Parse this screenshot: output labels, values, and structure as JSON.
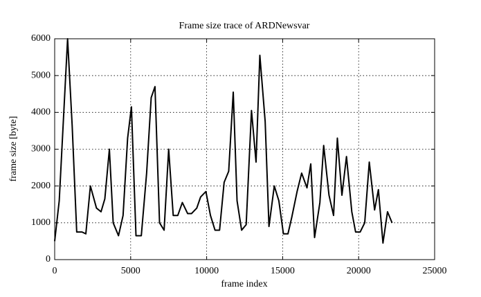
{
  "chart_data": {
    "type": "line",
    "title": "Frame size trace of ARDNewsvar",
    "x_label": "frame index",
    "y_label": "frame size [byte]",
    "x": [
      0,
      300,
      850,
      1150,
      1450,
      1800,
      2050,
      2350,
      2750,
      3050,
      3300,
      3600,
      3850,
      4200,
      4500,
      4800,
      5050,
      5350,
      5700,
      6050,
      6350,
      6600,
      6900,
      7200,
      7500,
      7800,
      8100,
      8400,
      8750,
      9000,
      9350,
      9600,
      9950,
      10250,
      10550,
      10850,
      11150,
      11450,
      11750,
      12000,
      12300,
      12600,
      12950,
      13250,
      13500,
      13850,
      14100,
      14450,
      14750,
      15050,
      15350,
      15600,
      15950,
      16250,
      16600,
      16850,
      17100,
      17450,
      17700,
      18050,
      18350,
      18600,
      18900,
      19200,
      19550,
      19800,
      20100,
      20400,
      20700,
      21050,
      21300,
      21600,
      21900,
      22200
    ],
    "series": [
      {
        "name": "frame size",
        "color": "#000000",
        "values": [
          500,
          1600,
          6000,
          3650,
          750,
          750,
          700,
          2000,
          1400,
          1300,
          1650,
          3000,
          1000,
          650,
          1200,
          3300,
          4150,
          650,
          650,
          2350,
          4400,
          4700,
          1000,
          800,
          3000,
          1200,
          1200,
          1550,
          1250,
          1250,
          1400,
          1700,
          1850,
          1200,
          800,
          800,
          2100,
          2400,
          4550,
          1600,
          800,
          950,
          4050,
          2650,
          5550,
          3750,
          900,
          2000,
          1600,
          700,
          700,
          1150,
          1850,
          2350,
          1950,
          2600,
          600,
          1550,
          3100,
          1750,
          1200,
          3300,
          1750,
          2800,
          1300,
          750,
          750,
          1000,
          2650,
          1350,
          1900,
          450,
          1300,
          1000
        ]
      }
    ],
    "xlim": [
      0,
      25000
    ],
    "xticks": [
      0,
      5000,
      10000,
      15000,
      20000,
      25000
    ],
    "ylim": [
      0,
      6000
    ],
    "yticks": [
      0,
      1000,
      2000,
      3000,
      4000,
      5000,
      6000
    ],
    "grid": true
  }
}
